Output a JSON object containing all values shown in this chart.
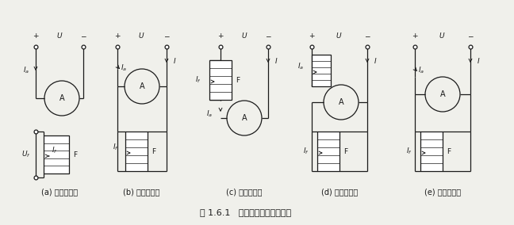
{
  "title": "图 1.6.1   直流发电机的励磁方式",
  "labels": [
    "(a) 他励发电机",
    "(b) 并励发电机",
    "(c) 串励发电机",
    "(d) 复励发电机",
    "(e) 复励发电机"
  ],
  "bg_color": "#f0f0eb",
  "line_color": "#1a1a1a",
  "fontsize_label": 7,
  "fontsize_title": 8,
  "fontsize_sym": 6.5
}
